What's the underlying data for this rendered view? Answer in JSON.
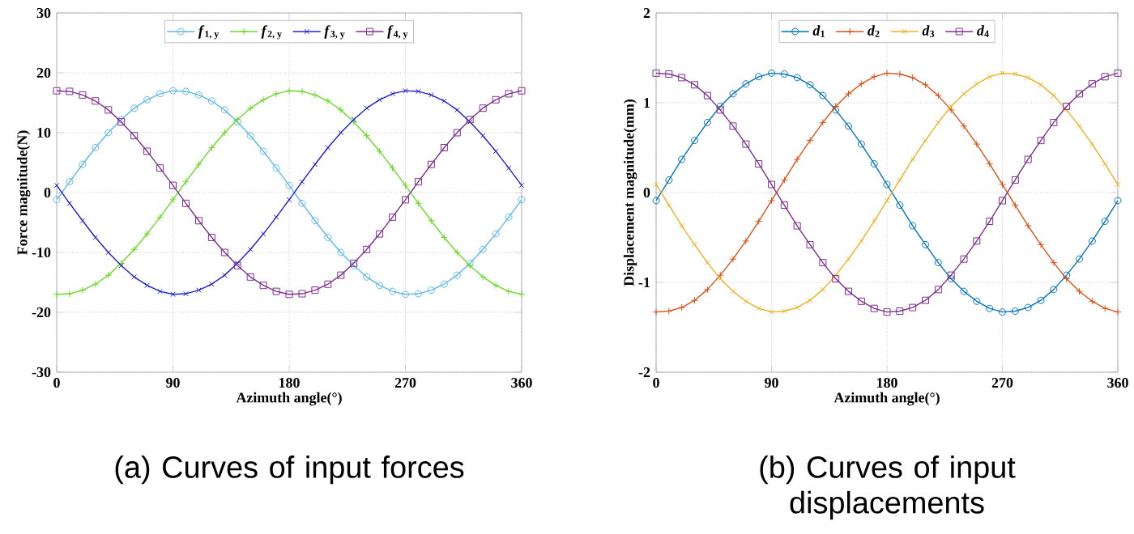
{
  "chart_data": [
    {
      "type": "line",
      "title": "(a) Curves of input forces",
      "xlabel": "Azimuth angle(°)",
      "ylabel": "Force magnitude(N)",
      "x": [
        0,
        10,
        20,
        30,
        40,
        50,
        60,
        70,
        80,
        90,
        100,
        110,
        120,
        130,
        140,
        150,
        160,
        170,
        180,
        190,
        200,
        210,
        220,
        230,
        240,
        250,
        260,
        270,
        280,
        290,
        300,
        310,
        320,
        330,
        340,
        350,
        360
      ],
      "xlim": [
        0,
        360
      ],
      "xticks": [
        0,
        90,
        180,
        270,
        360
      ],
      "ylim": [
        -30,
        30
      ],
      "yticks": [
        -30,
        -20,
        -10,
        0,
        10,
        20,
        30
      ],
      "grid": true,
      "legend": "top",
      "line_style": "solid",
      "series": [
        {
          "name": "*f*$_{1, y}$",
          "color": "#5bb8e8",
          "marker": "circle",
          "values": [
            -1.2,
            1.8,
            4.7,
            7.5,
            10.0,
            12.2,
            14.1,
            15.5,
            16.5,
            17.0,
            16.9,
            16.3,
            15.3,
            13.8,
            11.8,
            9.5,
            6.9,
            4.1,
            1.2,
            -1.8,
            -4.7,
            -7.5,
            -10.0,
            -12.2,
            -14.1,
            -15.5,
            -16.5,
            -17.0,
            -16.9,
            -16.3,
            -15.3,
            -13.8,
            -11.8,
            -9.5,
            -6.9,
            -4.1,
            -1.2
          ]
        },
        {
          "name": "*f*$_{2, y}$",
          "color": "#6cd92a",
          "marker": "plus",
          "values": [
            -17.0,
            -16.9,
            -16.3,
            -15.3,
            -13.8,
            -11.8,
            -9.5,
            -6.9,
            -4.1,
            -1.2,
            1.8,
            4.7,
            7.5,
            10.0,
            12.2,
            14.1,
            15.5,
            16.5,
            17.0,
            16.9,
            16.3,
            15.3,
            13.8,
            11.8,
            9.5,
            6.9,
            4.1,
            1.2,
            -1.8,
            -4.7,
            -7.5,
            -10.0,
            -12.2,
            -14.1,
            -15.5,
            -16.5,
            -17.0
          ]
        },
        {
          "name": "*f*$_{3, y}$",
          "color": "#1f1fd6",
          "marker": "cross",
          "values": [
            1.2,
            -1.8,
            -4.7,
            -7.5,
            -10.0,
            -12.2,
            -14.1,
            -15.5,
            -16.5,
            -17.0,
            -16.9,
            -16.3,
            -15.3,
            -13.8,
            -11.8,
            -9.5,
            -6.9,
            -4.1,
            -1.2,
            1.8,
            4.7,
            7.5,
            10.0,
            12.2,
            14.1,
            15.5,
            16.5,
            17.0,
            16.9,
            16.3,
            15.3,
            13.8,
            11.8,
            9.5,
            6.9,
            4.1,
            1.2
          ]
        },
        {
          "name": "*f*$_{4, y}$",
          "color": "#7e2f8e",
          "marker": "square",
          "values": [
            17.0,
            16.9,
            16.3,
            15.3,
            13.8,
            11.8,
            9.5,
            6.9,
            4.1,
            1.2,
            -1.8,
            -4.7,
            -7.5,
            -10.0,
            -12.2,
            -14.1,
            -15.5,
            -16.5,
            -17.0,
            -16.9,
            -16.3,
            -15.3,
            -13.8,
            -11.8,
            -9.5,
            -6.9,
            -4.1,
            -1.2,
            1.8,
            4.7,
            7.5,
            10.0,
            12.2,
            14.1,
            15.5,
            16.5,
            17.0
          ]
        }
      ]
    },
    {
      "type": "line",
      "title": "(b) Curves of input displacements",
      "xlabel": "Azimuth angle(°)",
      "ylabel": "Displacement magnitude(mm)",
      "x": [
        0,
        10,
        20,
        30,
        40,
        50,
        60,
        70,
        80,
        90,
        100,
        110,
        120,
        130,
        140,
        150,
        160,
        170,
        180,
        190,
        200,
        210,
        220,
        230,
        240,
        250,
        260,
        270,
        280,
        290,
        300,
        310,
        320,
        330,
        340,
        350,
        360
      ],
      "xlim": [
        0,
        360
      ],
      "xticks": [
        0,
        90,
        180,
        270,
        360
      ],
      "ylim": [
        -2,
        2
      ],
      "yticks": [
        -2,
        -1,
        0,
        1,
        2
      ],
      "grid": true,
      "legend": "top",
      "line_style": "solid",
      "series": [
        {
          "name": "*d*$_{1}$",
          "color": "#0072bd",
          "marker": "circle",
          "values": [
            -0.09,
            0.14,
            0.37,
            0.58,
            0.78,
            0.96,
            1.1,
            1.21,
            1.29,
            1.33,
            1.32,
            1.28,
            1.2,
            1.08,
            0.92,
            0.74,
            0.54,
            0.32,
            0.09,
            -0.14,
            -0.37,
            -0.58,
            -0.78,
            -0.96,
            -1.1,
            -1.21,
            -1.29,
            -1.33,
            -1.32,
            -1.28,
            -1.2,
            -1.08,
            -0.92,
            -0.74,
            -0.54,
            -0.32,
            -0.09
          ]
        },
        {
          "name": "*d*$_{2}$",
          "color": "#d95319",
          "marker": "plus",
          "values": [
            -1.33,
            -1.32,
            -1.28,
            -1.2,
            -1.08,
            -0.92,
            -0.74,
            -0.54,
            -0.32,
            -0.09,
            0.14,
            0.37,
            0.58,
            0.78,
            0.96,
            1.1,
            1.21,
            1.29,
            1.33,
            1.32,
            1.28,
            1.2,
            1.08,
            0.92,
            0.74,
            0.54,
            0.32,
            0.09,
            -0.14,
            -0.37,
            -0.58,
            -0.78,
            -0.96,
            -1.1,
            -1.21,
            -1.29,
            -1.33
          ]
        },
        {
          "name": "*d*$_{3}$",
          "color": "#edb120",
          "marker": "cross",
          "values": [
            0.09,
            -0.14,
            -0.37,
            -0.58,
            -0.78,
            -0.96,
            -1.1,
            -1.21,
            -1.29,
            -1.33,
            -1.32,
            -1.28,
            -1.2,
            -1.08,
            -0.92,
            -0.74,
            -0.54,
            -0.32,
            -0.09,
            0.14,
            0.37,
            0.58,
            0.78,
            0.96,
            1.1,
            1.21,
            1.29,
            1.33,
            1.32,
            1.28,
            1.2,
            1.08,
            0.92,
            0.74,
            0.54,
            0.32,
            0.09
          ]
        },
        {
          "name": "*d*$_{4}$",
          "color": "#7e2f8e",
          "marker": "square",
          "values": [
            1.33,
            1.32,
            1.28,
            1.2,
            1.08,
            0.92,
            0.74,
            0.54,
            0.32,
            0.09,
            -0.14,
            -0.37,
            -0.58,
            -0.78,
            -0.96,
            -1.1,
            -1.21,
            -1.29,
            -1.33,
            -1.32,
            -1.28,
            -1.2,
            -1.08,
            -0.92,
            -0.74,
            -0.54,
            -0.32,
            -0.09,
            0.14,
            0.37,
            0.58,
            0.78,
            0.96,
            1.1,
            1.21,
            1.29,
            1.33
          ]
        }
      ]
    }
  ]
}
